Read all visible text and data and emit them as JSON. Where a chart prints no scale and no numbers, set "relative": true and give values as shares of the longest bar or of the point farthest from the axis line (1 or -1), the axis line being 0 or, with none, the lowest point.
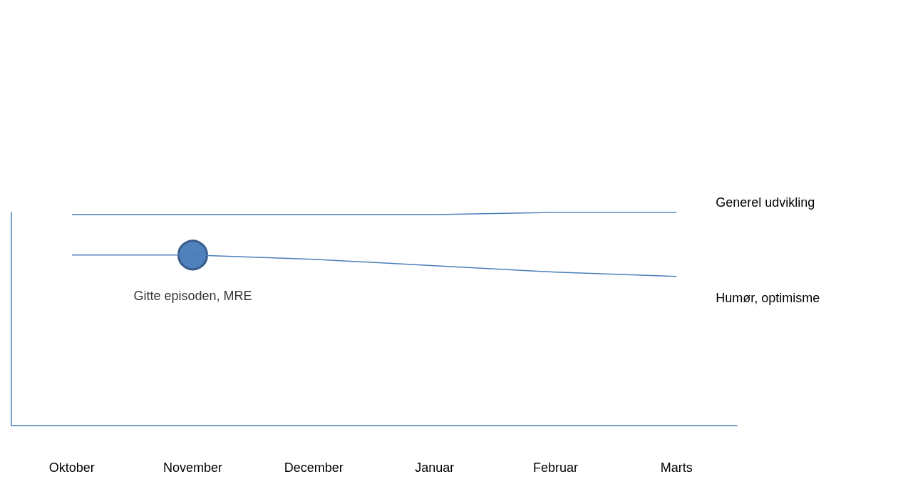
{
  "chart_data": {
    "type": "line",
    "relative": true,
    "categories": [
      "Oktober",
      "November",
      "December",
      "Januar",
      "Februar",
      "Marts"
    ],
    "series": [
      {
        "name": "Generel udvikling",
        "color": "#4a7ebb",
        "values": [
          0.99,
          0.99,
          0.99,
          0.99,
          1,
          1
        ]
      },
      {
        "name": "Humør, optimisme",
        "color": "#4a7ebb",
        "values": [
          0.8,
          0.8,
          0.78,
          0.75,
          0.72,
          0.7
        ]
      },
      {
        "type": "scatter",
        "x": [
          "November"
        ],
        "color": "#4f81bd",
        "values": [
          0.8
        ]
      }
    ],
    "annotations": [
      {
        "text": "Gitte episoden, MRE",
        "x": "November",
        "y": 0.8
      }
    ],
    "grid": false,
    "legend": false
  }
}
